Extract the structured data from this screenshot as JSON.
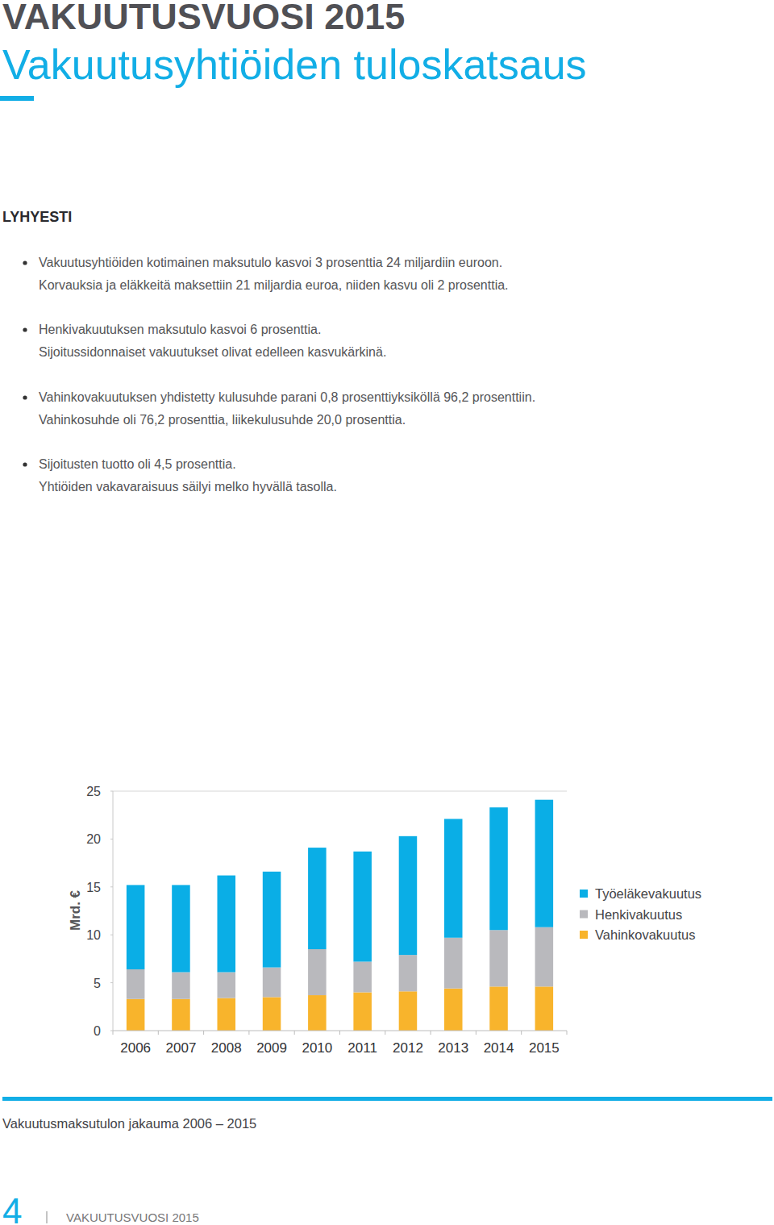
{
  "header": {
    "title": "VAKUUTUSVUOSI 2015",
    "subtitle": "Vakuutusyhtiöiden tuloskatsaus"
  },
  "summary": {
    "heading": "LYHYESTI",
    "items": [
      [
        "Vakuutusyhtiöiden kotimainen maksutulo kasvoi 3 prosenttia 24 miljardiin euroon.",
        "Korvauksia ja eläkkeitä maksettiin 21 miljardia euroa, niiden kasvu oli 2 prosenttia."
      ],
      [
        "Henkivakuutuksen maksutulo kasvoi 6 prosenttia.",
        "Sijoitussidonnaiset vakuutukset olivat edelleen kasvukärkinä."
      ],
      [
        "Vahinkovakuutuksen yhdistetty kulusuhde parani 0,8 prosenttiyksiköllä 96,2 prosenttiin.",
        "Vahinkosuhde oli 76,2 prosenttia, liikekulusuhde 20,0 prosenttia."
      ],
      [
        "Sijoitusten tuotto oli 4,5 prosenttia.",
        "Yhtiöiden vakavaraisuus säilyi melko hyvällä tasolla."
      ]
    ]
  },
  "chart_data": {
    "type": "bar",
    "stacked": true,
    "title": "Vakuutusmaksutulon jakauma 2006 – 2015",
    "y_label": "Mrd. €",
    "categories": [
      "2006",
      "2007",
      "2008",
      "2009",
      "2010",
      "2011",
      "2012",
      "2013",
      "2014",
      "2015"
    ],
    "series": [
      {
        "name": "Työeläkevakuutus",
        "color": "#0aaee6",
        "values": [
          8.8,
          9.1,
          10.1,
          10.0,
          10.6,
          11.5,
          12.4,
          12.4,
          12.8,
          13.3
        ]
      },
      {
        "name": "Henkivakuutus",
        "color": "#b9b9bd",
        "values": [
          3.1,
          2.8,
          2.7,
          3.1,
          4.8,
          3.2,
          3.8,
          5.3,
          5.9,
          6.2
        ]
      },
      {
        "name": "Vahinkovakuutus",
        "color": "#f8b42c",
        "values": [
          3.3,
          3.3,
          3.4,
          3.5,
          3.7,
          4.0,
          4.1,
          4.4,
          4.6,
          4.6
        ]
      }
    ],
    "ylim": [
      0,
      25
    ],
    "yticks": [
      0,
      5,
      10,
      15,
      20,
      25
    ],
    "grid": false,
    "legend": "right"
  },
  "footer": {
    "page": "4",
    "text": "VAKUUTUSVUOSI 2015"
  }
}
